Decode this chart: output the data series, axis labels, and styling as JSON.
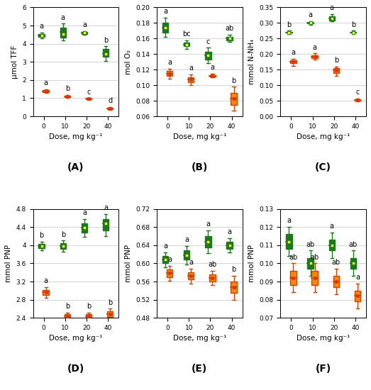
{
  "subplots": [
    {
      "label": "A",
      "ylabel": "μmol TFF",
      "ylim": [
        0,
        6
      ],
      "yticks": [
        0,
        1,
        2,
        3,
        4,
        5,
        6
      ],
      "green": {
        "medians": [
          4.45,
          4.65,
          4.6,
          3.45
        ],
        "q1": [
          4.38,
          4.35,
          4.55,
          3.3
        ],
        "q3": [
          4.52,
          4.9,
          4.65,
          3.7
        ],
        "whislo": [
          4.3,
          4.2,
          4.5,
          3.05
        ],
        "whishi": [
          4.6,
          5.1,
          4.7,
          3.85
        ],
        "means": [
          4.45,
          4.55,
          4.6,
          3.45
        ],
        "labels": [
          "a",
          "a",
          "a",
          "b"
        ]
      },
      "orange": {
        "medians": [
          1.38,
          1.08,
          0.96,
          0.42
        ],
        "q1": [
          1.33,
          1.04,
          0.93,
          0.38
        ],
        "q3": [
          1.43,
          1.13,
          0.98,
          0.46
        ],
        "whislo": [
          1.28,
          1.0,
          0.9,
          0.35
        ],
        "whishi": [
          1.48,
          1.18,
          1.0,
          0.5
        ],
        "means": [
          1.38,
          1.08,
          0.96,
          0.42
        ],
        "labels": [
          "a",
          "b",
          "c",
          "d"
        ]
      }
    },
    {
      "label": "B",
      "ylabel": "mol O₂",
      "ylim": [
        0.06,
        0.2
      ],
      "yticks": [
        0.06,
        0.08,
        0.1,
        0.12,
        0.14,
        0.16,
        0.18,
        0.2
      ],
      "green": {
        "medians": [
          0.174,
          0.152,
          0.138,
          0.16
        ],
        "q1": [
          0.168,
          0.15,
          0.133,
          0.158
        ],
        "q3": [
          0.18,
          0.155,
          0.143,
          0.162
        ],
        "whislo": [
          0.162,
          0.147,
          0.128,
          0.156
        ],
        "whishi": [
          0.187,
          0.158,
          0.148,
          0.165
        ],
        "means": [
          0.174,
          0.152,
          0.138,
          0.16
        ],
        "labels": [
          "a",
          "bc",
          "c",
          "ab"
        ]
      },
      "orange": {
        "medians": [
          0.115,
          0.107,
          0.112,
          0.083
        ],
        "q1": [
          0.112,
          0.104,
          0.111,
          0.075
        ],
        "q3": [
          0.118,
          0.11,
          0.113,
          0.09
        ],
        "whislo": [
          0.108,
          0.1,
          0.11,
          0.067
        ],
        "whishi": [
          0.121,
          0.114,
          0.115,
          0.098
        ],
        "means": [
          0.115,
          0.107,
          0.112,
          0.083
        ],
        "labels": [
          "a",
          "a",
          "a",
          "b"
        ]
      }
    },
    {
      "label": "C",
      "ylabel": "mmol N-NH₄",
      "ylim": [
        0.0,
        0.35
      ],
      "yticks": [
        0.0,
        0.05,
        0.1,
        0.15,
        0.2,
        0.25,
        0.3,
        0.35
      ],
      "green": {
        "medians": [
          0.27,
          0.3,
          0.315,
          0.27
        ],
        "q1": [
          0.268,
          0.298,
          0.308,
          0.268
        ],
        "q3": [
          0.272,
          0.302,
          0.322,
          0.272
        ],
        "whislo": [
          0.265,
          0.295,
          0.305,
          0.265
        ],
        "whishi": [
          0.275,
          0.305,
          0.328,
          0.275
        ],
        "means": [
          0.27,
          0.3,
          0.315,
          0.27
        ],
        "labels": [
          "b",
          "a",
          "a",
          "b"
        ]
      },
      "orange": {
        "medians": [
          0.175,
          0.192,
          0.148,
          0.052
        ],
        "q1": [
          0.17,
          0.187,
          0.14,
          0.05
        ],
        "q3": [
          0.18,
          0.197,
          0.155,
          0.055
        ],
        "whislo": [
          0.163,
          0.182,
          0.13,
          0.048
        ],
        "whishi": [
          0.185,
          0.202,
          0.16,
          0.058
        ],
        "means": [
          0.175,
          0.192,
          0.148,
          0.052
        ],
        "labels": [
          "a",
          "a",
          "b",
          "c"
        ]
      }
    },
    {
      "label": "D",
      "ylabel": "mmol PNP",
      "ylim": [
        2.4,
        4.8
      ],
      "yticks": [
        2.4,
        2.8,
        3.2,
        3.6,
        4.0,
        4.4,
        4.8
      ],
      "green": {
        "medians": [
          3.98,
          3.98,
          4.38,
          4.48
        ],
        "q1": [
          3.93,
          3.92,
          4.28,
          4.32
        ],
        "q3": [
          4.03,
          4.05,
          4.48,
          4.58
        ],
        "whislo": [
          3.88,
          3.86,
          4.18,
          4.2
        ],
        "whishi": [
          4.08,
          4.1,
          4.58,
          4.68
        ],
        "means": [
          3.98,
          3.98,
          4.38,
          4.48
        ],
        "labels": [
          "b",
          "b",
          "a",
          "a"
        ]
      },
      "orange": {
        "medians": [
          2.96,
          2.44,
          2.44,
          2.48
        ],
        "q1": [
          2.9,
          2.4,
          2.4,
          2.42
        ],
        "q3": [
          3.02,
          2.48,
          2.48,
          2.54
        ],
        "whislo": [
          2.84,
          2.35,
          2.35,
          2.37
        ],
        "whishi": [
          3.08,
          2.52,
          2.52,
          2.6
        ],
        "means": [
          2.96,
          2.44,
          2.44,
          2.48
        ],
        "labels": [
          "a",
          "b",
          "b",
          "b"
        ]
      }
    },
    {
      "label": "E",
      "ylabel": "mmol PNP",
      "ylim": [
        0.48,
        0.72
      ],
      "yticks": [
        0.48,
        0.52,
        0.56,
        0.6,
        0.64,
        0.68,
        0.72
      ],
      "green": {
        "medians": [
          0.608,
          0.618,
          0.648,
          0.64
        ],
        "q1": [
          0.6,
          0.608,
          0.635,
          0.632
        ],
        "q3": [
          0.616,
          0.628,
          0.66,
          0.648
        ],
        "whislo": [
          0.592,
          0.598,
          0.622,
          0.624
        ],
        "whishi": [
          0.624,
          0.638,
          0.672,
          0.656
        ],
        "means": [
          0.608,
          0.618,
          0.648,
          0.64
        ],
        "labels": [
          "a",
          "a",
          "a",
          "a"
        ]
      },
      "orange": {
        "medians": [
          0.578,
          0.572,
          0.568,
          0.548
        ],
        "q1": [
          0.57,
          0.564,
          0.56,
          0.535
        ],
        "q3": [
          0.586,
          0.58,
          0.576,
          0.56
        ],
        "whislo": [
          0.562,
          0.556,
          0.552,
          0.52
        ],
        "whishi": [
          0.594,
          0.588,
          0.584,
          0.572
        ],
        "means": [
          0.578,
          0.572,
          0.568,
          0.548
        ],
        "labels": [
          "a",
          "a",
          "ab",
          "b"
        ]
      }
    },
    {
      "label": "F",
      "ylabel": "mmol PNP",
      "ylim": [
        0.07,
        0.13
      ],
      "yticks": [
        0.07,
        0.08,
        0.09,
        0.1,
        0.11,
        0.12,
        0.13
      ],
      "green": {
        "medians": [
          0.112,
          0.1,
          0.11,
          0.1
        ],
        "q1": [
          0.108,
          0.097,
          0.107,
          0.097
        ],
        "q3": [
          0.116,
          0.103,
          0.113,
          0.103
        ],
        "whislo": [
          0.104,
          0.093,
          0.103,
          0.093
        ],
        "whishi": [
          0.12,
          0.107,
          0.117,
          0.107
        ],
        "means": [
          0.112,
          0.1,
          0.11,
          0.1
        ],
        "labels": [
          "a",
          "ab",
          "a",
          "ab"
        ]
      },
      "orange": {
        "medians": [
          0.092,
          0.092,
          0.09,
          0.082
        ],
        "q1": [
          0.088,
          0.088,
          0.087,
          0.079
        ],
        "q3": [
          0.096,
          0.096,
          0.093,
          0.085
        ],
        "whislo": [
          0.084,
          0.084,
          0.083,
          0.075
        ],
        "whishi": [
          0.1,
          0.1,
          0.097,
          0.089
        ],
        "means": [
          0.092,
          0.092,
          0.09,
          0.082
        ],
        "labels": [
          "ab",
          "ab",
          "ab",
          "a"
        ]
      }
    }
  ],
  "doses": [
    0,
    10,
    20,
    40
  ],
  "green_color": "#1a7a1a",
  "green_mean_color": "#ffff00",
  "orange_color": "#cc4400",
  "orange_face": "#ff8800",
  "orange_mean_color": "#ff2200",
  "label_fontsize": 7,
  "tick_fontsize": 6.5,
  "axis_label_fontsize": 7.5,
  "subplot_label_fontsize": 10,
  "xlabel": "Dose, mg kg⁻¹",
  "background_color": "#ffffff",
  "grid_color": "#cccccc"
}
